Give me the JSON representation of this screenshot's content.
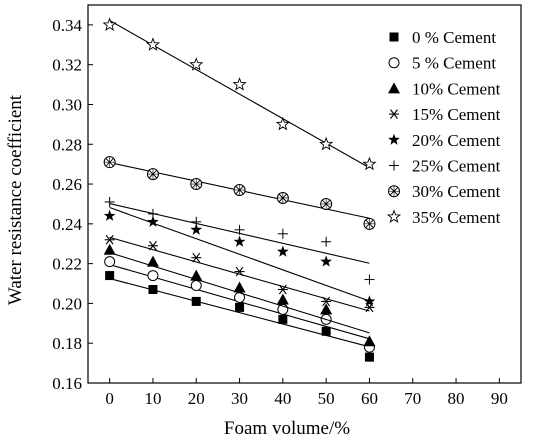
{
  "chart_data": {
    "type": "scatter",
    "title": "",
    "xlabel": "Foam volume/%",
    "ylabel": "Water resistance coefficient",
    "xlim": [
      -5,
      95
    ],
    "ylim": [
      0.16,
      0.35
    ],
    "xticks": [
      0,
      10,
      20,
      30,
      40,
      50,
      60,
      70,
      80,
      90
    ],
    "yticks": [
      0.16,
      0.18,
      0.2,
      0.22,
      0.24,
      0.26,
      0.28,
      0.3,
      0.32,
      0.34
    ],
    "ytick_labels": [
      "0.16",
      "0.18",
      "0.20",
      "0.22",
      "0.24",
      "0.26",
      "0.28",
      "0.30",
      "0.32",
      "0.34"
    ],
    "grid": false,
    "legend_position": "top-right",
    "fit_lines": true,
    "x": [
      0,
      10,
      20,
      30,
      40,
      50,
      60
    ],
    "series": [
      {
        "name": "0 % Cement",
        "marker": "square-filled",
        "values": [
          0.214,
          0.207,
          0.201,
          0.198,
          0.192,
          0.186,
          0.173
        ],
        "fit": [
          0.2125,
          0.1782
        ]
      },
      {
        "name": "5 % Cement",
        "marker": "circle-open",
        "values": [
          0.221,
          0.214,
          0.209,
          0.203,
          0.197,
          0.192,
          0.178
        ],
        "fit": [
          0.2195,
          0.1822
        ]
      },
      {
        "name": "10% Cement",
        "marker": "triangle-filled",
        "values": [
          0.227,
          0.221,
          0.214,
          0.208,
          0.202,
          0.197,
          0.181
        ],
        "fit": [
          0.2255,
          0.1852
        ]
      },
      {
        "name": "15% Cement",
        "marker": "asterisk",
        "values": [
          0.232,
          0.229,
          0.223,
          0.216,
          0.207,
          0.201,
          0.198
        ],
        "fit": [
          0.2332,
          0.1962
        ]
      },
      {
        "name": "20% Cement",
        "marker": "star-filled",
        "values": [
          0.244,
          0.241,
          0.237,
          0.231,
          0.226,
          0.221,
          0.201
        ],
        "fit": [
          0.2482,
          0.2012
        ]
      },
      {
        "name": "25% Cement",
        "marker": "plus",
        "values": [
          0.251,
          0.245,
          0.241,
          0.237,
          0.235,
          0.231,
          0.212
        ],
        "fit": [
          0.2502,
          0.2202
        ]
      },
      {
        "name": "30% Cement",
        "marker": "circle-x",
        "values": [
          0.271,
          0.265,
          0.26,
          0.257,
          0.253,
          0.25,
          0.24
        ],
        "fit": [
          0.2708,
          0.2428
        ]
      },
      {
        "name": "35% Cement",
        "marker": "star-open",
        "values": [
          0.34,
          0.33,
          0.32,
          0.31,
          0.29,
          0.28,
          0.27
        ],
        "fit": [
          0.3422,
          0.2682
        ]
      }
    ]
  }
}
